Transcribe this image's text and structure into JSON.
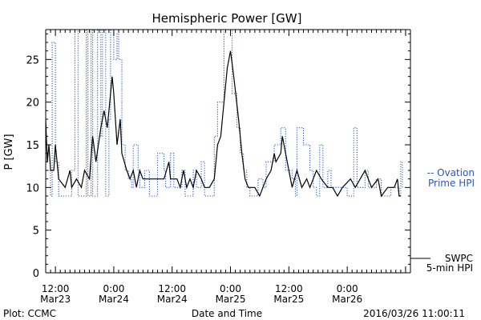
{
  "chart_data": {
    "type": "line",
    "title": "Hemispheric Power [GW]",
    "xlabel": "Date and Time",
    "ylabel": "P [GW]",
    "ylim": [
      0,
      28.5
    ],
    "yticks": [
      0,
      5,
      10,
      15,
      20,
      25
    ],
    "xlim": [
      "2016-03-23T10:00",
      "2016-03-26T13:00"
    ],
    "xticks": [
      {
        "t": "2016-03-23T12:00",
        "label": [
          "12:00",
          "Mar23"
        ]
      },
      {
        "t": "2016-03-24T00:00",
        "label": [
          "0:00",
          "Mar24"
        ]
      },
      {
        "t": "2016-03-24T12:00",
        "label": [
          "12:00",
          "Mar24"
        ]
      },
      {
        "t": "2016-03-25T00:00",
        "label": [
          "0:00",
          "Mar25"
        ]
      },
      {
        "t": "2016-03-25T12:00",
        "label": [
          "12:00",
          "Mar25"
        ]
      },
      {
        "t": "2016-03-26T00:00",
        "label": [
          "0:00",
          "Mar26"
        ]
      }
    ],
    "grid": false,
    "legend_position": "right",
    "series": [
      {
        "name": "Ovation Prime HPI",
        "legend_label": [
          "-- Ovation",
          "Prime HPI"
        ],
        "color": "#2a56c6",
        "style": "dotted",
        "interpolation": "step",
        "points": [
          [
            "2016-03-23T10:00",
            12
          ],
          [
            "2016-03-23T11:00",
            9
          ],
          [
            "2016-03-23T11:20",
            27
          ],
          [
            "2016-03-23T12:00",
            13
          ],
          [
            "2016-03-23T12:40",
            9
          ],
          [
            "2016-03-23T15:20",
            12
          ],
          [
            "2016-03-23T16:00",
            28.5
          ],
          [
            "2016-03-23T16:40",
            9
          ],
          [
            "2016-03-23T18:20",
            28.5
          ],
          [
            "2016-03-23T18:40",
            9
          ],
          [
            "2016-03-23T19:20",
            28.5
          ],
          [
            "2016-03-23T19:40",
            9
          ],
          [
            "2016-03-23T20:40",
            28.5
          ],
          [
            "2016-03-23T21:20",
            16
          ],
          [
            "2016-03-23T21:40",
            28.5
          ],
          [
            "2016-03-23T22:20",
            9
          ],
          [
            "2016-03-23T23:00",
            18
          ],
          [
            "2016-03-23T23:20",
            28.5
          ],
          [
            "2016-03-24T00:00",
            25
          ],
          [
            "2016-03-24T00:40",
            28
          ],
          [
            "2016-03-24T01:00",
            25
          ],
          [
            "2016-03-24T01:40",
            15
          ],
          [
            "2016-03-24T02:20",
            12
          ],
          [
            "2016-03-24T03:00",
            11
          ],
          [
            "2016-03-24T03:40",
            10
          ],
          [
            "2016-03-24T04:00",
            15
          ],
          [
            "2016-03-24T05:00",
            12
          ],
          [
            "2016-03-24T05:20",
            10
          ],
          [
            "2016-03-24T06:20",
            12
          ],
          [
            "2016-03-24T07:20",
            9
          ],
          [
            "2016-03-24T09:00",
            14
          ],
          [
            "2016-03-24T10:20",
            12
          ],
          [
            "2016-03-24T10:40",
            10
          ],
          [
            "2016-03-24T11:40",
            14
          ],
          [
            "2016-03-24T12:20",
            10
          ],
          [
            "2016-03-24T14:00",
            12
          ],
          [
            "2016-03-24T14:40",
            9
          ],
          [
            "2016-03-24T16:20",
            12
          ],
          [
            "2016-03-24T17:00",
            10
          ],
          [
            "2016-03-24T18:00",
            13
          ],
          [
            "2016-03-24T18:40",
            9
          ],
          [
            "2016-03-24T20:40",
            16
          ],
          [
            "2016-03-24T21:20",
            20
          ],
          [
            "2016-03-24T22:20",
            20
          ],
          [
            "2016-03-24T22:40",
            28.5
          ],
          [
            "2016-03-25T00:20",
            21
          ],
          [
            "2016-03-25T01:20",
            17
          ],
          [
            "2016-03-25T02:00",
            14
          ],
          [
            "2016-03-25T02:40",
            12
          ],
          [
            "2016-03-25T03:20",
            10
          ],
          [
            "2016-03-25T04:00",
            9
          ],
          [
            "2016-03-25T05:40",
            11
          ],
          [
            "2016-03-25T06:40",
            10
          ],
          [
            "2016-03-25T07:20",
            13
          ],
          [
            "2016-03-25T09:00",
            15
          ],
          [
            "2016-03-25T10:20",
            17
          ],
          [
            "2016-03-25T11:20",
            12
          ],
          [
            "2016-03-25T12:40",
            11
          ],
          [
            "2016-03-25T13:20",
            9
          ],
          [
            "2016-03-25T13:40",
            17
          ],
          [
            "2016-03-25T15:00",
            15
          ],
          [
            "2016-03-25T16:20",
            12
          ],
          [
            "2016-03-25T17:00",
            10
          ],
          [
            "2016-03-25T17:40",
            9
          ],
          [
            "2016-03-25T18:20",
            15
          ],
          [
            "2016-03-25T19:00",
            10
          ],
          [
            "2016-03-25T20:00",
            12
          ],
          [
            "2016-03-25T20:40",
            10
          ],
          [
            "2016-03-25T22:20",
            10
          ],
          [
            "2016-03-26T00:00",
            9
          ],
          [
            "2016-03-26T01:20",
            17
          ],
          [
            "2016-03-26T02:00",
            10
          ],
          [
            "2016-03-26T03:40",
            12
          ],
          [
            "2016-03-26T04:20",
            10
          ],
          [
            "2016-03-26T06:00",
            11
          ],
          [
            "2016-03-26T07:00",
            9
          ],
          [
            "2016-03-26T09:00",
            10
          ],
          [
            "2016-03-26T10:40",
            9
          ],
          [
            "2016-03-26T11:00",
            13
          ],
          [
            "2016-03-26T11:20",
            10
          ]
        ]
      },
      {
        "name": "SWPC 5-min HPI",
        "legend_label": [
          "SWPC",
          "5-min HPI"
        ],
        "color": "#000000",
        "style": "solid",
        "interpolation": "linear",
        "points": [
          [
            "2016-03-23T10:00",
            18
          ],
          [
            "2016-03-23T10:20",
            13
          ],
          [
            "2016-03-23T10:40",
            15
          ],
          [
            "2016-03-23T11:00",
            12
          ],
          [
            "2016-03-23T11:40",
            12
          ],
          [
            "2016-03-23T12:00",
            15
          ],
          [
            "2016-03-23T12:40",
            11
          ],
          [
            "2016-03-23T14:00",
            10
          ],
          [
            "2016-03-23T15:00",
            12
          ],
          [
            "2016-03-23T15:20",
            10
          ],
          [
            "2016-03-23T16:20",
            11
          ],
          [
            "2016-03-23T17:20",
            10
          ],
          [
            "2016-03-23T18:00",
            12
          ],
          [
            "2016-03-23T19:00",
            11
          ],
          [
            "2016-03-23T19:40",
            16
          ],
          [
            "2016-03-23T20:20",
            13
          ],
          [
            "2016-03-23T21:20",
            17
          ],
          [
            "2016-03-23T22:00",
            19
          ],
          [
            "2016-03-23T22:40",
            17
          ],
          [
            "2016-03-23T23:00",
            19
          ],
          [
            "2016-03-23T23:40",
            23
          ],
          [
            "2016-03-24T00:00",
            21
          ],
          [
            "2016-03-24T00:40",
            15
          ],
          [
            "2016-03-24T01:20",
            18
          ],
          [
            "2016-03-24T01:40",
            14
          ],
          [
            "2016-03-24T02:40",
            12
          ],
          [
            "2016-03-24T03:20",
            11
          ],
          [
            "2016-03-24T04:00",
            12
          ],
          [
            "2016-03-24T04:40",
            10
          ],
          [
            "2016-03-24T05:20",
            12
          ],
          [
            "2016-03-24T06:00",
            11
          ],
          [
            "2016-03-24T09:20",
            11
          ],
          [
            "2016-03-24T10:20",
            11
          ],
          [
            "2016-03-24T11:20",
            13
          ],
          [
            "2016-03-24T11:40",
            11
          ],
          [
            "2016-03-24T13:00",
            11
          ],
          [
            "2016-03-24T13:40",
            10
          ],
          [
            "2016-03-24T14:20",
            12
          ],
          [
            "2016-03-24T15:00",
            10
          ],
          [
            "2016-03-24T15:40",
            11
          ],
          [
            "2016-03-24T16:20",
            10
          ],
          [
            "2016-03-24T17:00",
            12
          ],
          [
            "2016-03-24T18:00",
            11
          ],
          [
            "2016-03-24T18:40",
            10
          ],
          [
            "2016-03-24T19:40",
            10
          ],
          [
            "2016-03-24T20:40",
            11
          ],
          [
            "2016-03-24T21:20",
            15
          ],
          [
            "2016-03-24T22:00",
            16
          ],
          [
            "2016-03-24T22:40",
            20
          ],
          [
            "2016-03-24T23:20",
            24
          ],
          [
            "2016-03-24T23:40",
            25
          ],
          [
            "2016-03-25T00:00",
            26
          ],
          [
            "2016-03-25T00:40",
            23
          ],
          [
            "2016-03-25T01:40",
            18
          ],
          [
            "2016-03-25T02:20",
            14
          ],
          [
            "2016-03-25T03:00",
            11
          ],
          [
            "2016-03-25T03:40",
            10
          ],
          [
            "2016-03-25T05:00",
            10
          ],
          [
            "2016-03-25T06:00",
            9
          ],
          [
            "2016-03-25T06:40",
            10
          ],
          [
            "2016-03-25T07:20",
            11
          ],
          [
            "2016-03-25T08:20",
            12
          ],
          [
            "2016-03-25T09:00",
            14
          ],
          [
            "2016-03-25T09:20",
            13
          ],
          [
            "2016-03-25T10:20",
            14
          ],
          [
            "2016-03-25T10:40",
            16
          ],
          [
            "2016-03-25T11:20",
            14
          ],
          [
            "2016-03-25T12:00",
            12
          ],
          [
            "2016-03-25T12:40",
            10
          ],
          [
            "2016-03-25T13:40",
            12
          ],
          [
            "2016-03-25T14:40",
            10
          ],
          [
            "2016-03-25T15:40",
            11
          ],
          [
            "2016-03-25T16:20",
            10
          ],
          [
            "2016-03-25T17:00",
            11
          ],
          [
            "2016-03-25T17:40",
            12
          ],
          [
            "2016-03-25T18:40",
            11
          ],
          [
            "2016-03-25T20:00",
            10
          ],
          [
            "2016-03-25T21:00",
            10
          ],
          [
            "2016-03-25T22:00",
            9
          ],
          [
            "2016-03-25T23:00",
            10
          ],
          [
            "2016-03-26T00:40",
            11
          ],
          [
            "2016-03-26T01:40",
            10
          ],
          [
            "2016-03-26T02:40",
            11
          ],
          [
            "2016-03-26T03:40",
            12
          ],
          [
            "2016-03-26T04:20",
            11
          ],
          [
            "2016-03-26T05:00",
            10
          ],
          [
            "2016-03-26T06:20",
            11
          ],
          [
            "2016-03-26T07:00",
            9
          ],
          [
            "2016-03-26T08:20",
            10
          ],
          [
            "2016-03-26T09:40",
            10
          ],
          [
            "2016-03-26T10:20",
            11
          ],
          [
            "2016-03-26T10:40",
            9
          ],
          [
            "2016-03-26T11:00",
            9
          ]
        ]
      }
    ]
  },
  "footer": {
    "left": "Plot: CCMC",
    "right": "2016/03/26 11:00:11"
  }
}
